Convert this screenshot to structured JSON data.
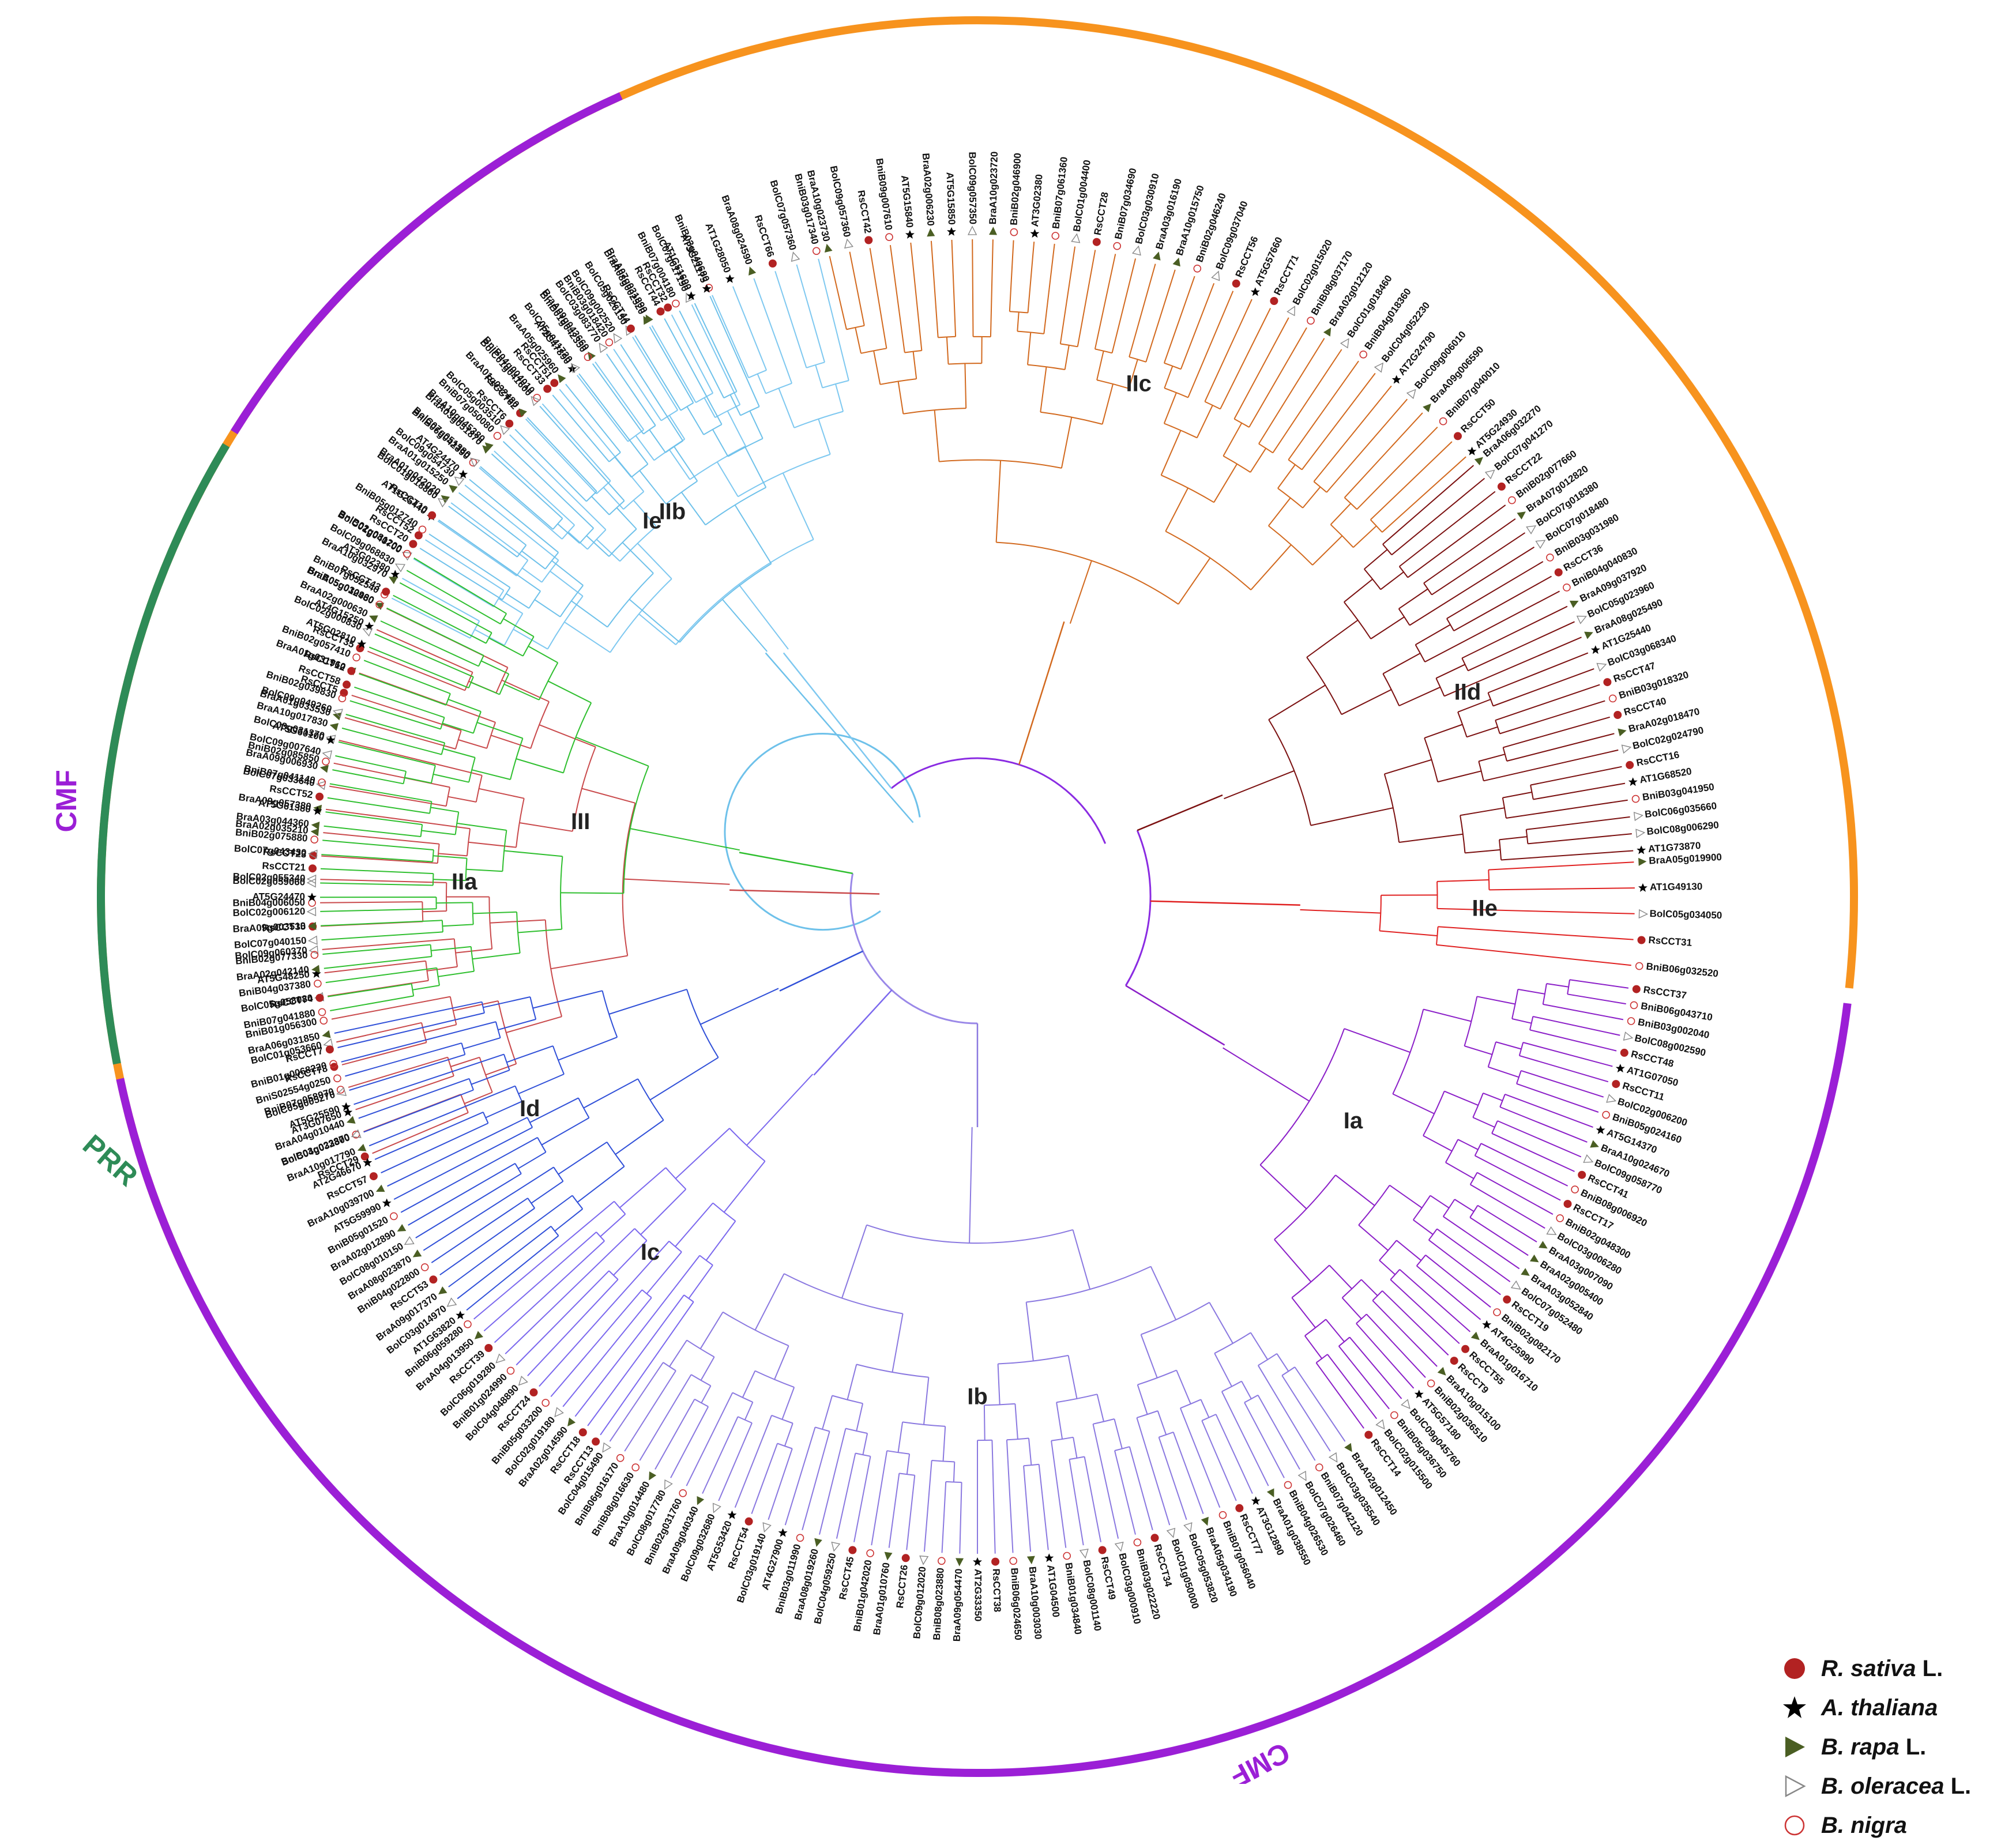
{
  "title": "Phylogenetic tree of CCT proteins",
  "colors": {
    "COL": "#f7931e",
    "CMF": "#9b1fd6",
    "PRR": "#2e8b57",
    "IIa": "#c9494b",
    "IIb": "#7ec8f0",
    "IIc": "#d2691e",
    "IId": "#7b1010",
    "IIe": "#e02020",
    "Ia": "#8b1fc8",
    "Ib": "#8a78e0",
    "Ic": "#7b68ee",
    "Id": "#3050d8",
    "Ie": "#6ec1ea",
    "III": "#2fbf2f",
    "backbone": "#8a2be2",
    "rs": "#b22222",
    "at": "#000000",
    "br": "#4a5e23",
    "bo": "#888888",
    "bn": "#cc3333"
  },
  "family_labels": [
    {
      "id": "COL",
      "text": "COL"
    },
    {
      "id": "CMF-left",
      "text": "CMF"
    },
    {
      "id": "CMF-bottom",
      "text": "CMF"
    },
    {
      "id": "PRR",
      "text": "PRR"
    }
  ],
  "clades": [
    {
      "id": "IIa",
      "label": "IIa",
      "leaves": [
        "RsCCT29",
        "BniB03g023870",
        "AT3G07650",
        "BniB07g058970",
        "RsCCT78",
        "BolC01g053660",
        "BniB01g056300",
        "BolC05g058080",
        "AT5G48250",
        "BolC09g060370",
        "RsCCT35",
        "BniB04g006050",
        "BolC02g055340",
        "RsCCT23",
        "BraA02g035210",
        "BraA09g057380",
        "BolC07g033640",
        "BniB02g085850",
        "BolC03g031370",
        "BraA01g033530",
        "RsCCT5",
        "BraA01g031960",
        "RsCCT35",
        "AT4G15250",
        "BraA05g012480"
      ]
    },
    {
      "id": "IIb",
      "label": "IIb",
      "leaves": [
        "BniB07g052540",
        "AT3G02380",
        "BolC01g040700",
        "RsCCT52",
        "AT1G25440",
        "BraA01g042020",
        "BolC09g054730",
        "BniB06g042390",
        "BraA10g045380",
        "BolC05g003510",
        "RsCCT62",
        "BniB04g004010",
        "RsCCT51",
        "AT2G47890",
        "BraA09g043660",
        "BniB03g018420",
        "BolC05g026150",
        "BraA07g031890",
        "RsCCT32",
        "BolC07g017190",
        "BniB03g040680",
        "AT1G28050",
        "BraA08g024590",
        "RsCCT66",
        "BolC07g057360",
        "BniB03g017340"
      ]
    },
    {
      "id": "IIc",
      "label": "IIc",
      "leaves": [
        "BraA10g023730",
        "BolC09g057360",
        "RsCCT42",
        "BniB09g007610",
        "AT5G15840",
        "BraA02g006230",
        "AT5G15850",
        "BolC09g057350",
        "BraA10g023720",
        "BniB02g046900",
        "AT3G02380",
        "BniB07g061360",
        "BolC01g004400",
        "RsCCT28",
        "BniB07g034690",
        "BolC03g030910",
        "BraA03g016190",
        "BraA10g015750",
        "BniB02g046240",
        "BolC09g037040",
        "RsCCT56",
        "AT5G57660",
        "RsCCT71",
        "BolC02g015020",
        "BniB08g037170",
        "BraA02g012120",
        "BolC01g018460",
        "BniB04g018360",
        "BolC04g052230",
        "AT2G24790",
        "BolC09g006010",
        "BraA09g006590",
        "BniB07g040010",
        "RsCCT50",
        "AT5G24930"
      ]
    },
    {
      "id": "IId",
      "label": "IId",
      "leaves": [
        "BraA06g032270",
        "BolC07g041270",
        "RsCCT22",
        "BniB02g077660",
        "BraA07g012820",
        "BolC07g018380",
        "BolC07g018480",
        "BniB03g031980",
        "RsCCT36",
        "BniB04g040830",
        "BraA09g037920",
        "BolC05g023960",
        "BraA08g025490",
        "AT1G25440",
        "BolC03g068340",
        "RsCCT47",
        "BniB03g018320",
        "RsCCT40",
        "BraA02g018470",
        "BolC02g024790",
        "RsCCT16",
        "AT1G68520",
        "BniB03g041950",
        "BolC06g035660",
        "BolC08g006290",
        "AT1G73870"
      ]
    },
    {
      "id": "IIe",
      "label": "IIe",
      "leaves": [
        "BraA05g019900",
        "AT1G49130",
        "BolC05g034050",
        "RsCCT31",
        "BniB06g032520"
      ]
    },
    {
      "id": "Ia",
      "label": "Ia",
      "leaves": [
        "RsCCT37",
        "BniB06g043710",
        "BniB03g002040",
        "BolC08g002590",
        "RsCCT48",
        "AT1G07050",
        "RsCCT11",
        "BolC02g006200",
        "BniB05g024160",
        "AT5G14370",
        "BraA10g024670",
        "BolC09g058770",
        "RsCCT41",
        "BniB08g006920",
        "RsCCT17",
        "BniB02g048300",
        "BolC03g006280",
        "BraA03g007090",
        "BraA02g005400",
        "BraA03g052840",
        "BolC07g052480",
        "RsCCT19",
        "BniB02g082170",
        "AT4G25990",
        "BraA01g016710",
        "RsCCT55",
        "RsCCT9",
        "BraA10g015100",
        "BniB02g036510",
        "AT5G57180",
        "BolC09g045760",
        "BniB05g036750",
        "BolC02g015500",
        "RsCCT14"
      ]
    },
    {
      "id": "Ib",
      "label": "Ib",
      "leaves": [
        "BraA02g012450",
        "BolC03g035540",
        "BniB07g042120",
        "BolC07g026460",
        "BniB04g026530",
        "BraA01g038550",
        "AT3G12890",
        "RsCCT77",
        "BniB07g056040",
        "BraA05g034190",
        "BolC05g053820",
        "BolC01g050000",
        "RsCCT34",
        "BniB03g022220",
        "BolC03g000910",
        "RsCCT49",
        "BolC08g001140",
        "BniB01g034840",
        "AT1G04500",
        "BraA10g003030",
        "BniB06g024650",
        "RsCCT38",
        "AT2G33350",
        "BraA09g054470",
        "BniB08g023880",
        "BolC09g012020",
        "RsCCT26",
        "BraA01g010760",
        "BniB01g042020",
        "RsCCT45",
        "BolC04g059250",
        "BraA08g019260",
        "BniB03g011990",
        "AT4G27900",
        "BolC03g019140",
        "RsCCT54",
        "AT5G53420",
        "BolC09g032680",
        "BraA09g040340",
        "BniB02g031760",
        "BolC08g017780",
        "BraA10g014480",
        "BniB08g016630",
        "BniB06g016170",
        "BolC04g015490"
      ]
    },
    {
      "id": "Ic",
      "label": "Ic",
      "leaves": [
        "RsCCT13",
        "RsCCT18",
        "BraA02g014590",
        "BolC02g019180",
        "BniB05g033200",
        "RsCCT24",
        "BolC04g048890",
        "BniB01g024990",
        "BolC06g019280",
        "RsCCT39",
        "BraA04g013950",
        "BniB06g059280"
      ]
    },
    {
      "id": "Id",
      "label": "Id",
      "leaves": [
        "AT1G63820",
        "BolC03g014970",
        "BraA09g017370",
        "RsCCT53",
        "BniB04g022800",
        "BraA08g023870",
        "BolC08g010150",
        "BraA02g012890",
        "BniB05g01520",
        "AT5G59990",
        "BraA10g039700",
        "RsCCT57",
        "AT2G46670",
        "BraA10g017790",
        "BolC04g032300",
        "BraA04g010440",
        "AT5G25590",
        "BolC05g005270",
        "BniS02554g0250",
        "BniB01g0068220",
        "RsCCT7",
        "BraA06g031850"
      ]
    },
    {
      "id": "III",
      "label": "III",
      "leaves": [
        "BniB07g041880",
        "RsCCT74",
        "BniB04g037380",
        "BraA02g042140",
        "BniB02g077330",
        "BolC07g040150",
        "BraA09g003510",
        "BolC02g006120",
        "AT5G24470",
        "BolC02g059060",
        "RsCCT21",
        "BolC07g043430",
        "BniB02g075880",
        "BraA03g044360",
        "AT5G61380",
        "RsCCT52",
        "BniB07g041140",
        "BraA09g006930",
        "BolC09g007640",
        "AT5G60100",
        "BraA10g017830",
        "BolC09g049260",
        "BniB02g039830",
        "RsCCT58",
        "RsCCT12",
        "BniB02g057410",
        "AT5G02810",
        "BolC02g000830",
        "BraA02g000630",
        "BniB05g030960",
        "RsCCT43",
        "BraA10g032970",
        "BolC09g068830",
        "BniB02g081200"
      ]
    },
    {
      "id": "Ie",
      "label": "Ie",
      "leaves": [
        "RsCCT20",
        "BniB05g012740",
        "RsCCT10",
        "BolC01g018860",
        "BraA01g015250",
        "AT4G24470",
        "BolC07g051380",
        "BraA03g051870",
        "BniB07g050080",
        "RsCCT6",
        "BraA01g032480",
        "BolC01g041600",
        "RsCCT33",
        "BraA05g025960",
        "BolC05g041720",
        "BniB01g042350",
        "BolC03g083770",
        "BolC09g002520",
        "RsCCT44",
        "BraA08g002520",
        "RsCCT44",
        "BniB07g004180",
        "AT1G51600",
        "AT3G21175"
      ]
    }
  ],
  "legend": [
    {
      "id": "rs",
      "text": "R. sativa",
      "suffix": " L."
    },
    {
      "id": "at",
      "text": "A. thaliana",
      "suffix": ""
    },
    {
      "id": "br",
      "text": "B. rapa",
      "suffix": " L."
    },
    {
      "id": "bo",
      "text": "B. oleracea",
      "suffix": " L."
    },
    {
      "id": "bn",
      "text": "B. nigra",
      "suffix": ""
    }
  ]
}
